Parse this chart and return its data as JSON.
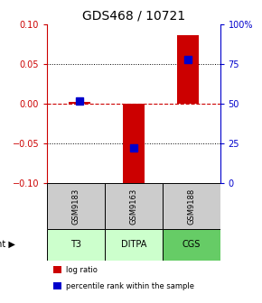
{
  "title": "GDS468 / 10721",
  "categories": [
    "GSM9183",
    "GSM9163",
    "GSM9188"
  ],
  "agents": [
    "T3",
    "DITPA",
    "CGS"
  ],
  "log_ratios": [
    0.002,
    -0.103,
    0.086
  ],
  "percentile_ranks": [
    52,
    22,
    78
  ],
  "ylim_left": [
    -0.1,
    0.1
  ],
  "ylim_right": [
    0,
    100
  ],
  "yticks_left": [
    -0.1,
    -0.05,
    0,
    0.05,
    0.1
  ],
  "yticks_right": [
    0,
    25,
    50,
    75,
    100
  ],
  "ytick_labels_right": [
    "0",
    "25",
    "50",
    "75",
    "100%"
  ],
  "bar_color": "#cc0000",
  "percentile_color": "#0000cc",
  "grid_color": "#333333",
  "zero_line_color": "#cc0000",
  "gsm_bg_color": "#cccccc",
  "agent_bg_color_light": "#ccffcc",
  "agent_bg_color_dark": "#66cc66",
  "agent_bg_colors": [
    "#ccffcc",
    "#ccffcc",
    "#66cc66"
  ],
  "bar_width": 0.4,
  "percentile_marker_size": 6,
  "dotted_grid_levels": [
    -0.05,
    0.05
  ],
  "zero_dashed": 0.0
}
